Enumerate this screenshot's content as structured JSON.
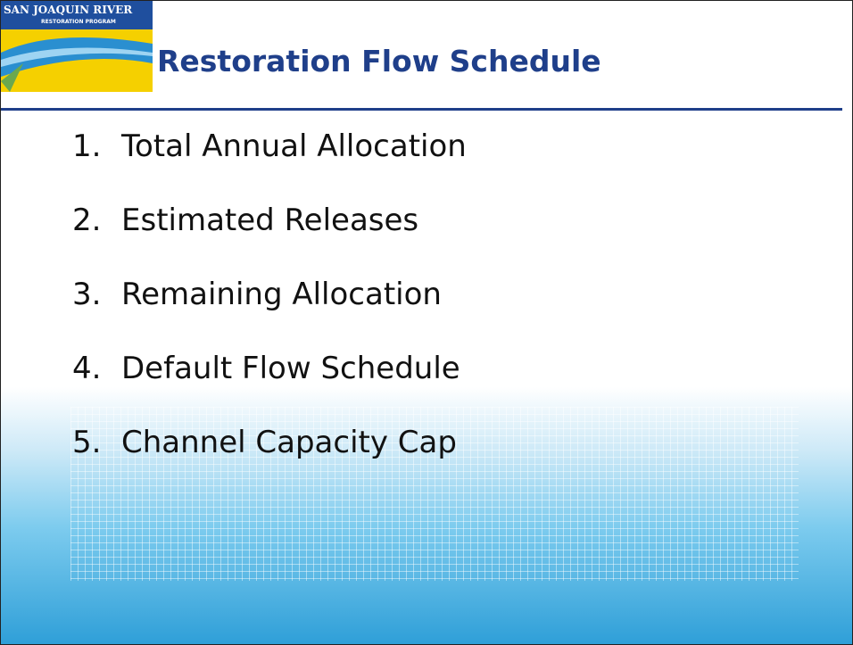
{
  "header": {
    "logo_line1": "SAN JOAQUIN RIVER",
    "logo_line2": "RESTORATION PROGRAM",
    "title": "Restoration Flow Schedule"
  },
  "list": [
    {
      "number": "1.",
      "text": "Total Annual Allocation"
    },
    {
      "number": "2.",
      "text": "Estimated Releases"
    },
    {
      "number": "3.",
      "text": "Remaining Allocation"
    },
    {
      "number": "4.",
      "text": "Default Flow Schedule"
    },
    {
      "number": "5.",
      "text": "Channel Capacity Cap"
    }
  ]
}
